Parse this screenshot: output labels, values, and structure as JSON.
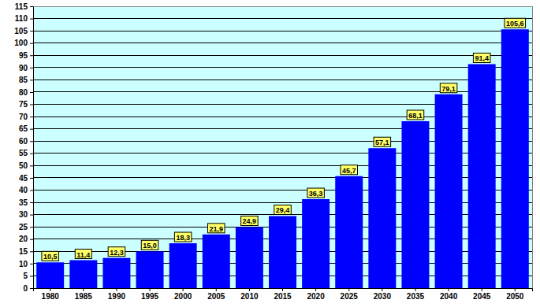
{
  "chart_data": {
    "type": "bar",
    "categories": [
      "1980",
      "1985",
      "1990",
      "1995",
      "2000",
      "2005",
      "2010",
      "2015",
      "2020",
      "2025",
      "2030",
      "2035",
      "2040",
      "2045",
      "2050"
    ],
    "values": [
      10.5,
      11.4,
      12.3,
      15.0,
      18.3,
      21.9,
      24.9,
      29.4,
      36.3,
      45.7,
      57.1,
      68.1,
      79.1,
      91.4,
      105.6
    ],
    "value_labels": [
      "10,5",
      "11,4",
      "12,3",
      "15,0",
      "18,3",
      "21,9",
      "24,9",
      "29,4",
      "36,3",
      "45,7",
      "57,1",
      "68,1",
      "79,1",
      "91,4",
      "105,6"
    ],
    "color": "#0000ff",
    "ylim": [
      0,
      115
    ],
    "yticks": [
      0,
      5,
      10,
      15,
      20,
      25,
      30,
      35,
      40,
      45,
      50,
      55,
      60,
      65,
      70,
      75,
      80,
      85,
      90,
      95,
      100,
      105,
      110,
      115
    ],
    "grid": true,
    "data_labels": true
  }
}
